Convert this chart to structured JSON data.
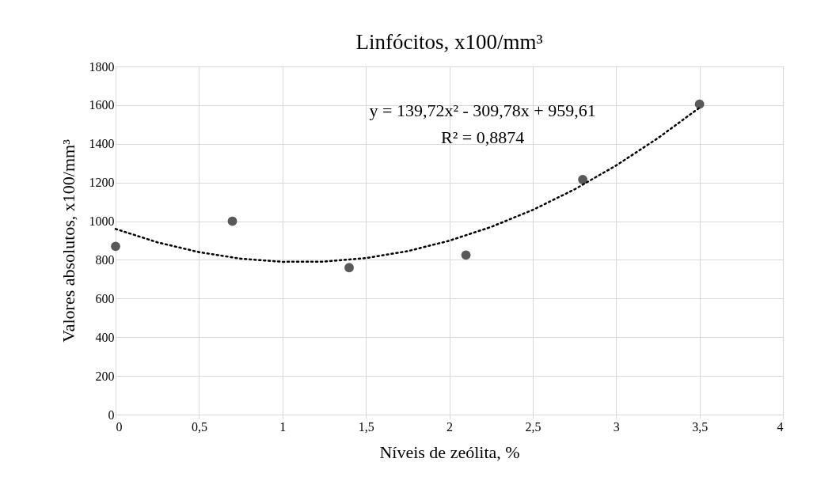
{
  "chart_data": {
    "type": "scatter",
    "title": "Linfócitos, x100/mm³",
    "xlabel": "Níveis de zeólita, %",
    "ylabel": "Valores absolutos, x100/mm³",
    "xlim": [
      0,
      4
    ],
    "ylim": [
      0,
      1800
    ],
    "xticks": [
      0,
      {
        "value": 0.5,
        "label": "0,5"
      },
      1,
      {
        "value": 1.5,
        "label": "1,5"
      },
      2,
      {
        "value": 2.5,
        "label": "2,5"
      },
      3,
      {
        "value": 3.5,
        "label": "3,5"
      },
      4
    ],
    "yticks": [
      0,
      200,
      400,
      600,
      800,
      1000,
      1200,
      1400,
      1600,
      1800
    ],
    "grid": true,
    "series": [
      {
        "color": "#595959",
        "marker": "circle",
        "x": [
          0,
          0.7,
          1.4,
          2.1,
          2.8,
          3.5
        ],
        "values": [
          870,
          1000,
          760,
          825,
          1215,
          1605
        ]
      },
      {
        "type": "line",
        "color": "#000000",
        "line_style": "dotted",
        "x": [
          0,
          0.25,
          0.5,
          0.75,
          1,
          1.25,
          1.5,
          1.75,
          2,
          2.25,
          2.5,
          2.75,
          3,
          3.25,
          3.5
        ],
        "values": [
          960,
          891,
          840,
          806,
          790,
          791,
          809,
          845,
          899,
          970,
          1058,
          1164,
          1288,
          1429,
          1587
        ]
      }
    ],
    "annotations": [
      "y = 139,72x² - 309,78x + 959,61",
      "R² = 0,8874"
    ]
  }
}
